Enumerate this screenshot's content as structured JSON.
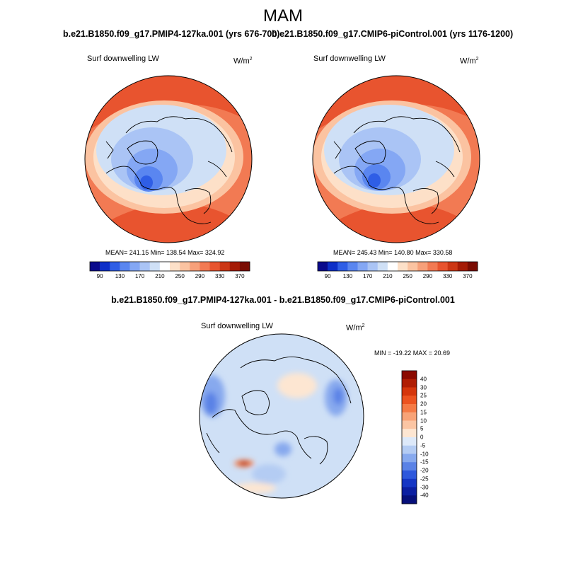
{
  "header": {
    "title": "MAM"
  },
  "panels": {
    "left": {
      "title": "b.e21.B1850.f09_g17.PMIP4-127ka.001 (yrs 676-700)",
      "variable": "Surf downwelling LW",
      "units": "W/m",
      "units_exp": "2",
      "stats": "MEAN= 241.15  Min= 138.54  Max= 324.92"
    },
    "right": {
      "title": "b.e21.B1850.f09_g17.CMIP6-piControl.001 (yrs 1176-1200)",
      "variable": "Surf downwelling LW",
      "units": "W/m",
      "units_exp": "2",
      "stats": "MEAN= 245.43  Min= 140.80  Max= 330.58"
    },
    "diff": {
      "title": "b.e21.B1850.f09_g17.PMIP4-127ka.001 - b.e21.B1850.f09_g17.CMIP6-piControl.001",
      "variable": "Surf downwelling LW",
      "units": "W/m",
      "units_exp": "2",
      "stats": "MIN = -19.22 MAX =  20.69"
    }
  },
  "chart_data": [
    {
      "type": "heatmap",
      "projection": "north-polar-stereographic",
      "title": "b.e21.B1850.f09_g17.PMIP4-127ka.001 (yrs 676-700)",
      "variable": "Surf downwelling LW",
      "units": "W/m^2",
      "mean": 241.15,
      "min": 138.54,
      "max": 324.92,
      "colorbar": {
        "orientation": "horizontal",
        "levels": [
          90,
          110,
          130,
          150,
          170,
          190,
          210,
          230,
          250,
          270,
          290,
          310,
          330,
          350,
          370
        ],
        "tick_labels": [
          "90",
          "130",
          "170",
          "210",
          "250",
          "290",
          "330",
          "370"
        ],
        "colors": [
          "#0a0a8c",
          "#0d2fc8",
          "#2f5ee6",
          "#5a86f0",
          "#84a7f4",
          "#aac4f5",
          "#cfe0f6",
          "#ffffff",
          "#fde0c8",
          "#fbc3a1",
          "#f7a07a",
          "#f27a53",
          "#e8542f",
          "#cc3614",
          "#a51b06",
          "#7a0c02"
        ]
      }
    },
    {
      "type": "heatmap",
      "projection": "north-polar-stereographic",
      "title": "b.e21.B1850.f09_g17.CMIP6-piControl.001 (yrs 1176-1200)",
      "variable": "Surf downwelling LW",
      "units": "W/m^2",
      "mean": 245.43,
      "min": 140.8,
      "max": 330.58,
      "colorbar": {
        "orientation": "horizontal",
        "levels": [
          90,
          110,
          130,
          150,
          170,
          190,
          210,
          230,
          250,
          270,
          290,
          310,
          330,
          350,
          370
        ],
        "tick_labels": [
          "90",
          "130",
          "170",
          "210",
          "250",
          "290",
          "330",
          "370"
        ],
        "colors": [
          "#0a0a8c",
          "#0d2fc8",
          "#2f5ee6",
          "#5a86f0",
          "#84a7f4",
          "#aac4f5",
          "#cfe0f6",
          "#ffffff",
          "#fde0c8",
          "#fbc3a1",
          "#f7a07a",
          "#f27a53",
          "#e8542f",
          "#cc3614",
          "#a51b06",
          "#7a0c02"
        ]
      }
    },
    {
      "type": "heatmap",
      "projection": "north-polar-stereographic",
      "title": "b.e21.B1850.f09_g17.PMIP4-127ka.001 - b.e21.B1850.f09_g17.CMIP6-piControl.001",
      "variable": "Surf downwelling LW",
      "units": "W/m^2",
      "min": -19.22,
      "max": 20.69,
      "colorbar": {
        "orientation": "vertical",
        "tick_labels": [
          "40",
          "30",
          "25",
          "20",
          "15",
          "10",
          "5",
          "0",
          "-5",
          "-10",
          "-15",
          "-20",
          "-25",
          "-30",
          "-40"
        ],
        "colors": [
          "#8b0a00",
          "#b01e04",
          "#d5360c",
          "#ec5320",
          "#f57a45",
          "#f8a377",
          "#fbc5a3",
          "#fde6d2",
          "#dde9f9",
          "#b4ccf3",
          "#87a9ee",
          "#5a82e6",
          "#2e58dc",
          "#1536c4",
          "#0b1fa1",
          "#06107a"
        ]
      }
    }
  ]
}
